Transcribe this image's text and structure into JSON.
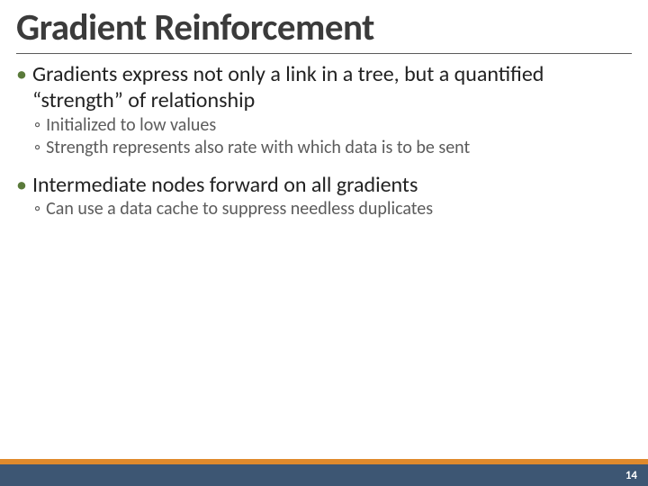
{
  "title": {
    "text": "Gradient Reinforcement",
    "fontsize": 41,
    "color": "#3b3b3b"
  },
  "bullets": [
    {
      "level": 1,
      "text": "Gradients express not only a link in a tree, but a quantified “strength” of relationship"
    },
    {
      "level": 2,
      "text": "Initialized to low values"
    },
    {
      "level": 2,
      "text": "Strength represents also rate with which data is to be sent"
    },
    {
      "level": 0,
      "text": ""
    },
    {
      "level": 1,
      "text": "Intermediate nodes forward on all gradients"
    },
    {
      "level": 2,
      "text": "Can use a data cache to suppress needless duplicates"
    }
  ],
  "bullet_style": {
    "lvl1_glyph": "•",
    "lvl1_bullet_color": "#5a7a3a",
    "lvl1_fontsize": 24,
    "lvl1_color": "#222222",
    "lvl2_glyph": "◦",
    "lvl2_bullet_color": "#888888",
    "lvl2_fontsize": 20,
    "lvl2_color": "#5b5b5b"
  },
  "footer": {
    "orange_color": "#e08a2c",
    "orange_height": 6,
    "blue_color": "#3d5673",
    "blue_height": 24,
    "page_number": "14",
    "page_number_fontsize": 13,
    "page_number_color": "#ffffff"
  },
  "rule_color": "#5a5a5a"
}
